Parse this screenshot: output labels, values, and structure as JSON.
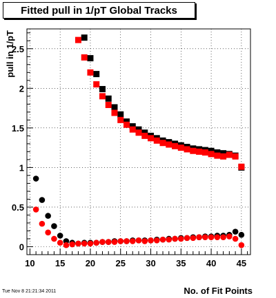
{
  "chart_data": {
    "type": "scatter",
    "title": "Fitted pull in 1/pT  Global Tracks",
    "xlabel": "No. of Fit Points",
    "ylabel": "pull in 1/pT",
    "xlim": [
      9.5,
      46.5
    ],
    "ylim": [
      -0.1,
      2.75
    ],
    "x_ticks": [
      10,
      15,
      20,
      25,
      30,
      35,
      40,
      45
    ],
    "y_ticks": [
      0,
      0.5,
      1,
      1.5,
      2,
      2.5
    ],
    "grid": true,
    "timestamp": "Tue Nov  8 21:21:34 2011",
    "series": [
      {
        "marker": "square",
        "color": "#000000",
        "x": [
          19,
          20,
          21,
          22,
          23,
          24,
          25,
          26,
          27,
          28,
          29,
          30,
          31,
          32,
          33,
          34,
          35,
          36,
          37,
          38,
          39,
          40,
          41,
          42,
          43,
          44,
          45
        ],
        "y": [
          2.64,
          2.38,
          2.18,
          1.99,
          1.87,
          1.76,
          1.67,
          1.58,
          1.52,
          1.48,
          1.44,
          1.4,
          1.37,
          1.34,
          1.32,
          1.3,
          1.28,
          1.26,
          1.24,
          1.23,
          1.22,
          1.21,
          1.19,
          1.18,
          1.17,
          1.15,
          1.0
        ]
      },
      {
        "marker": "square",
        "color": "#ff0000",
        "x": [
          18,
          19,
          20,
          21,
          22,
          23,
          24,
          25,
          26,
          27,
          28,
          29,
          30,
          31,
          32,
          33,
          34,
          35,
          36,
          37,
          38,
          39,
          40,
          41,
          42,
          43,
          44,
          45
        ],
        "y": [
          2.61,
          2.39,
          2.2,
          2.05,
          1.9,
          1.79,
          1.69,
          1.6,
          1.54,
          1.48,
          1.44,
          1.4,
          1.37,
          1.34,
          1.31,
          1.29,
          1.27,
          1.25,
          1.23,
          1.21,
          1.2,
          1.19,
          1.17,
          1.15,
          1.14,
          1.16,
          1.14,
          1.01
        ]
      },
      {
        "marker": "circle",
        "color": "#000000",
        "x": [
          11,
          12,
          13,
          14,
          15,
          16,
          17,
          18,
          19,
          20,
          21,
          22,
          23,
          24,
          25,
          26,
          27,
          28,
          29,
          30,
          31,
          32,
          33,
          34,
          35,
          36,
          37,
          38,
          39,
          40,
          41,
          42,
          43,
          44,
          45
        ],
        "y": [
          0.86,
          0.59,
          0.39,
          0.26,
          0.14,
          0.07,
          0.05,
          0.04,
          0.05,
          0.05,
          0.05,
          0.06,
          0.06,
          0.07,
          0.07,
          0.07,
          0.08,
          0.08,
          0.08,
          0.08,
          0.09,
          0.09,
          0.1,
          0.1,
          0.11,
          0.11,
          0.12,
          0.12,
          0.13,
          0.13,
          0.14,
          0.14,
          0.15,
          0.19,
          0.15
        ]
      },
      {
        "marker": "circle",
        "color": "#ff0000",
        "x": [
          11,
          12,
          13,
          14,
          15,
          16,
          17,
          18,
          19,
          20,
          21,
          22,
          23,
          24,
          25,
          26,
          27,
          28,
          29,
          30,
          31,
          32,
          33,
          34,
          35,
          36,
          37,
          38,
          39,
          40,
          41,
          42,
          43,
          44,
          45
        ],
        "y": [
          0.47,
          0.29,
          0.18,
          0.1,
          0.05,
          0.02,
          0.03,
          0.04,
          0.04,
          0.04,
          0.05,
          0.06,
          0.06,
          0.06,
          0.07,
          0.07,
          0.07,
          0.08,
          0.07,
          0.08,
          0.08,
          0.09,
          0.09,
          0.1,
          0.1,
          0.11,
          0.11,
          0.12,
          0.12,
          0.12,
          0.12,
          0.12,
          0.13,
          0.1,
          0.02
        ]
      }
    ]
  }
}
